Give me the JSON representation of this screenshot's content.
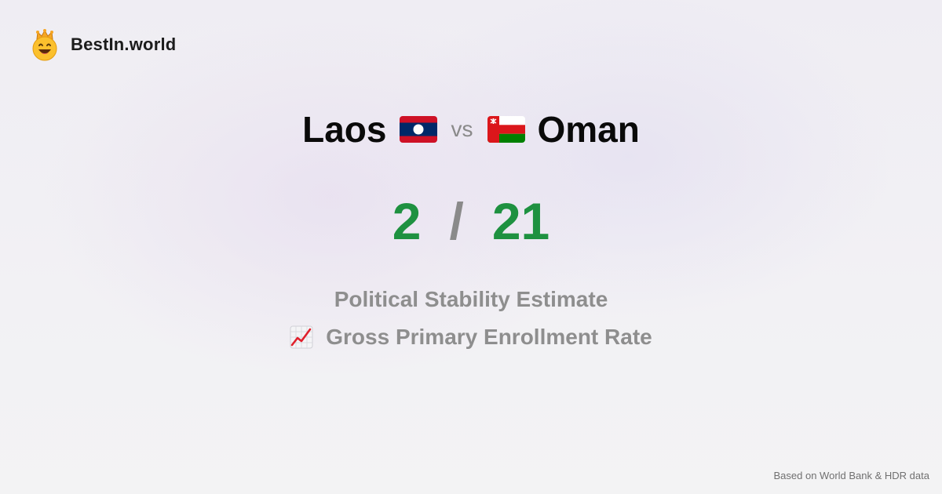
{
  "brand": {
    "name": "BestIn.world",
    "logo_icon": "crowned-smiley-icon"
  },
  "comparison": {
    "country_a": "Laos",
    "country_b": "Oman",
    "vs_label": "vs",
    "score_a": "2",
    "separator": "/",
    "score_b": "21",
    "score_color": "#1e9140"
  },
  "metrics": [
    {
      "label": "Political Stability Estimate"
    },
    {
      "label": "Gross Primary Enrollment Rate",
      "icon": "chart-increasing-icon"
    }
  ],
  "footer": {
    "source": "Based on World Bank & HDR data"
  }
}
